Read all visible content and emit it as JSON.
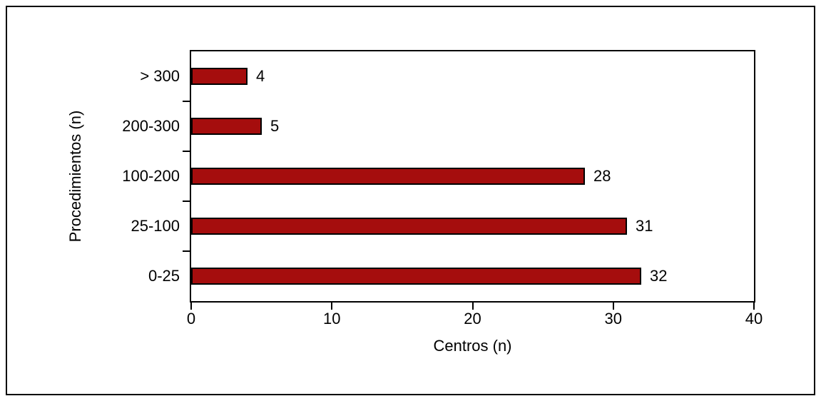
{
  "chart_data": {
    "type": "bar",
    "orientation": "horizontal",
    "title": "",
    "categories": [
      "> 300",
      "200-300",
      "100-200",
      "25-100",
      "0-25"
    ],
    "values": [
      4,
      5,
      28,
      31,
      32
    ],
    "data_labels": [
      "4",
      "5",
      "28",
      "31",
      "32"
    ],
    "xlabel": "Centros (n)",
    "ylabel": "Procedimientos (n)",
    "xlim": [
      0,
      40
    ],
    "xticks": [
      0,
      10,
      20,
      30,
      40
    ],
    "xtick_labels": [
      "0",
      "10",
      "20",
      "30",
      "40"
    ],
    "grid": "off",
    "legend": "none",
    "bar_color": "#a50d0d",
    "bar_border_color": "#000000",
    "frame_color": "#000000"
  }
}
